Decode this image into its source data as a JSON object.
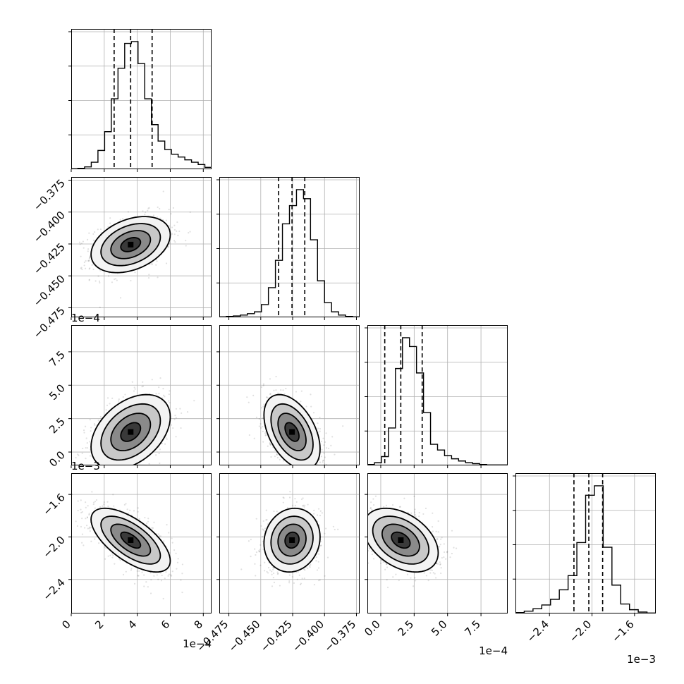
{
  "chart_data": {
    "type": "corner",
    "n_params": 4,
    "param_ranges": [
      [
        0,
        8.5
      ],
      [
        -0.4825,
        -0.3725
      ],
      [
        -1.0,
        9.5
      ],
      [
        -2.72,
        -1.4
      ]
    ],
    "ticks": [
      {
        "values": [
          0,
          2,
          4,
          6,
          8
        ],
        "labels": [
          "0",
          "2",
          "4",
          "6",
          "8"
        ],
        "offset": "1e−4"
      },
      {
        "values": [
          -0.475,
          -0.45,
          -0.425,
          -0.4,
          -0.375
        ],
        "labels": [
          "−0.475",
          "−0.450",
          "−0.425",
          "−0.400",
          "−0.375"
        ],
        "offset": ""
      },
      {
        "values": [
          0,
          2.5,
          5,
          7.5
        ],
        "labels": [
          "0.0",
          "2.5",
          "5.0",
          "7.5"
        ],
        "offset": "1e−4"
      },
      {
        "values": [
          -2.4,
          -2.0,
          -1.6
        ],
        "labels": [
          "−2.4",
          "−2.0",
          "−1.6"
        ],
        "offset": "1e−3"
      }
    ],
    "quantiles": [
      [
        2.6,
        3.6,
        4.9
      ],
      [
        -0.436,
        -0.4255,
        -0.4155
      ],
      [
        0.3,
        1.5,
        3.1
      ],
      [
        -2.17,
        -2.03,
        -1.9
      ]
    ],
    "histograms": [
      {
        "edges_range": [
          0,
          8.5
        ],
        "counts": [
          1,
          2,
          5,
          15,
          40,
          80,
          150,
          215,
          268,
          272,
          225,
          150,
          95,
          60,
          42,
          32,
          26,
          20,
          15,
          10,
          4
        ]
      },
      {
        "edges_range": [
          -0.4825,
          -0.3725
        ],
        "counts": [
          1,
          2,
          3,
          5,
          8,
          12,
          28,
          65,
          125,
          205,
          245,
          280,
          260,
          170,
          80,
          32,
          12,
          5,
          2,
          1
        ]
      },
      {
        "edges_range": [
          -1.0,
          9.5
        ],
        "counts": [
          2,
          6,
          20,
          85,
          220,
          290,
          270,
          210,
          120,
          48,
          35,
          22,
          15,
          10,
          6,
          4,
          2,
          1,
          1,
          1
        ]
      },
      {
        "edges_range": [
          -2.72,
          -1.4
        ],
        "counts": [
          2,
          5,
          10,
          18,
          30,
          50,
          80,
          150,
          250,
          270,
          140,
          60,
          20,
          8,
          3,
          1
        ]
      }
    ],
    "pairs": [
      {
        "x": 0,
        "y": 1,
        "mean": [
          3.6,
          -0.4255
        ],
        "sd": [
          1.2,
          0.011
        ],
        "rho": 0.35
      },
      {
        "x": 0,
        "y": 2,
        "mean": [
          3.6,
          1.5
        ],
        "sd": [
          1.2,
          1.4
        ],
        "rho": 0.4
      },
      {
        "x": 1,
        "y": 2,
        "mean": [
          -0.4255,
          1.5
        ],
        "sd": [
          0.011,
          1.4
        ],
        "rho": -0.45
      },
      {
        "x": 0,
        "y": 3,
        "mean": [
          3.6,
          -2.03
        ],
        "sd": [
          1.2,
          0.15
        ],
        "rho": -0.65
      },
      {
        "x": 1,
        "y": 3,
        "mean": [
          -0.4255,
          -2.03
        ],
        "sd": [
          0.011,
          0.15
        ],
        "rho": 0.1
      },
      {
        "x": 2,
        "y": 3,
        "mean": [
          1.5,
          -2.03
        ],
        "sd": [
          1.4,
          0.15
        ],
        "rho": -0.4
      }
    ],
    "contour_levels_sigma": [
      0.5,
      1.0,
      1.5,
      2.0
    ],
    "grid": true
  }
}
